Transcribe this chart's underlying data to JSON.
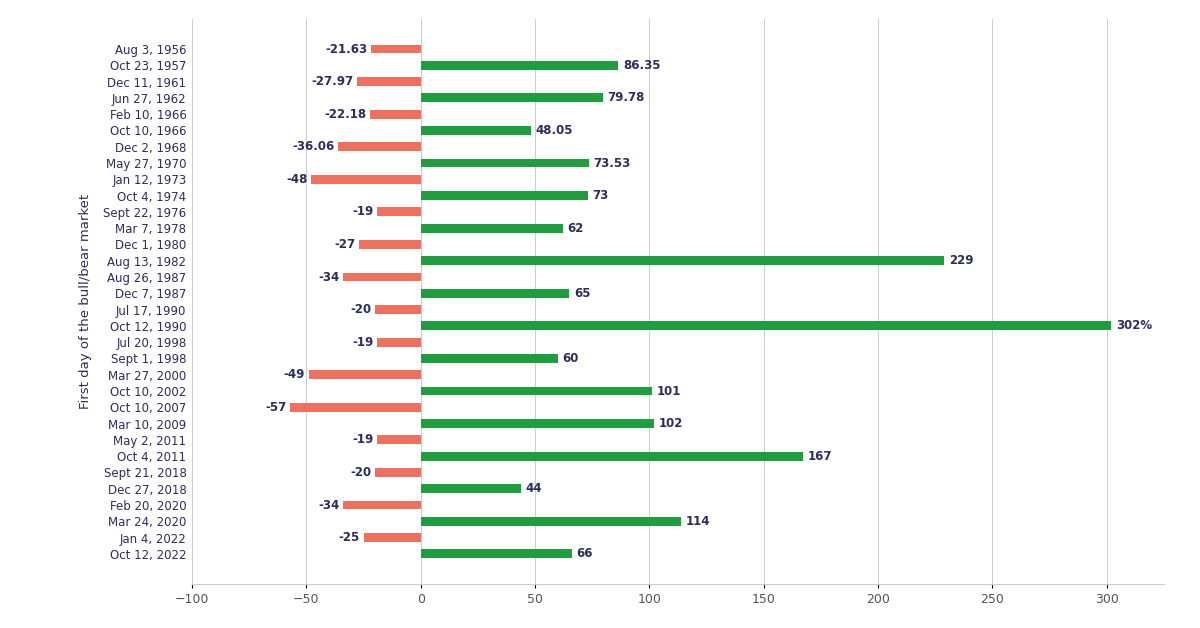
{
  "bars": [
    {
      "label": "Aug 3, 1956",
      "value": -21.63,
      "type": "bear"
    },
    {
      "label": "Oct 23, 1957",
      "value": 86.35,
      "type": "bull"
    },
    {
      "label": "Dec 11, 1961",
      "value": -27.97,
      "type": "bear"
    },
    {
      "label": "Jun 27, 1962",
      "value": 79.78,
      "type": "bull"
    },
    {
      "label": "Feb 10, 1966",
      "value": -22.18,
      "type": "bear"
    },
    {
      "label": "Oct 10, 1966",
      "value": 48.05,
      "type": "bull"
    },
    {
      "label": "Dec 2, 1968",
      "value": -36.06,
      "type": "bear"
    },
    {
      "label": "May 27, 1970",
      "value": 73.53,
      "type": "bull"
    },
    {
      "label": "Jan 12, 1973",
      "value": -48,
      "type": "bear"
    },
    {
      "label": "Oct 4, 1974",
      "value": 73,
      "type": "bull"
    },
    {
      "label": "Sept 22, 1976",
      "value": -19,
      "type": "bear"
    },
    {
      "label": "Mar 7, 1978",
      "value": 62,
      "type": "bull"
    },
    {
      "label": "Dec 1, 1980",
      "value": -27,
      "type": "bear"
    },
    {
      "label": "Aug 13, 1982",
      "value": 229,
      "type": "bull"
    },
    {
      "label": "Aug 26, 1987",
      "value": -34,
      "type": "bear"
    },
    {
      "label": "Dec 7, 1987",
      "value": 65,
      "type": "bull"
    },
    {
      "label": "Jul 17, 1990",
      "value": -20,
      "type": "bear"
    },
    {
      "label": "Oct 12, 1990",
      "value": 302,
      "type": "bull"
    },
    {
      "label": "Jul 20, 1998",
      "value": -19,
      "type": "bear"
    },
    {
      "label": "Sept 1, 1998",
      "value": 60,
      "type": "bull"
    },
    {
      "label": "Mar 27, 2000",
      "value": -49,
      "type": "bear"
    },
    {
      "label": "Oct 10, 2002",
      "value": 101,
      "type": "bull"
    },
    {
      "label": "Oct 10, 2007",
      "value": -57,
      "type": "bear"
    },
    {
      "label": "Mar 10, 2009",
      "value": 102,
      "type": "bull"
    },
    {
      "label": "May 2, 2011",
      "value": -19,
      "type": "bear"
    },
    {
      "label": "Oct 4, 2011",
      "value": 167,
      "type": "bull"
    },
    {
      "label": "Sept 21, 2018",
      "value": -20,
      "type": "bear"
    },
    {
      "label": "Dec 27, 2018",
      "value": 44,
      "type": "bull"
    },
    {
      "label": "Feb 20, 2020",
      "value": -34,
      "type": "bear"
    },
    {
      "label": "Mar 24, 2020",
      "value": 114,
      "type": "bull"
    },
    {
      "label": "Jan 4, 2022",
      "value": -25,
      "type": "bear"
    },
    {
      "label": "Oct 12, 2022",
      "value": 66,
      "type": "bull"
    }
  ],
  "bear_color": "#F07060",
  "bull_color": "#1E9E3E",
  "background_color": "#FFFFFF",
  "ylabel": "First day of the bull/bear market",
  "xlim": [
    -100,
    325
  ],
  "xticks": [
    -100,
    -50,
    0,
    50,
    100,
    150,
    200,
    250,
    300
  ],
  "grid_color": "#CCCCCC",
  "label_fontsize": 8.5,
  "value_fontsize": 8.5,
  "bar_height": 0.55,
  "label_color": "#2B2D5E",
  "tick_color": "#555555",
  "special_label": "302%"
}
